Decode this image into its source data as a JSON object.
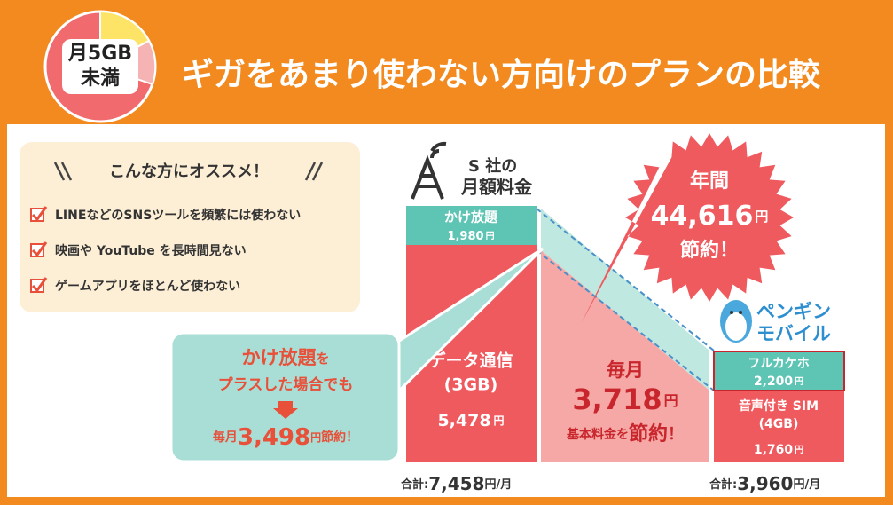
{
  "badge": {
    "line1": "月5GB",
    "line2": "未満"
  },
  "title": "ギガをあまり使わない方向けのプランの比較",
  "recommend": {
    "heading": "こんな方にオススメ！",
    "items": [
      "LINEなどのSNSツールを頻繁には使わない",
      "映画や YouTube を長時間見ない",
      "ゲームアプリをほとんど使わない"
    ]
  },
  "s_company": {
    "label1": "S 社の",
    "label2": "月額料金",
    "call": {
      "name": "かけ放題",
      "price": "1,980",
      "unit": "円"
    },
    "data": {
      "name": "データ通信",
      "size": "(3GB)",
      "price": "5,478",
      "unit": "円"
    },
    "total": {
      "prefix": "合計:",
      "price": "7,458",
      "unit": "円/月"
    }
  },
  "penguin": {
    "label1": "ペンギン",
    "label2": "モバイル",
    "call": {
      "name": "フルカケホ",
      "price": "2,200",
      "unit": "円"
    },
    "data": {
      "name": "音声付き SIM",
      "size": "(4GB)",
      "price": "1,760",
      "unit": "円"
    },
    "total": {
      "prefix": "合計:",
      "price": "3,960",
      "unit": "円/月"
    }
  },
  "monthly": {
    "label": "毎月",
    "price": "3,718",
    "unit": "円",
    "line2a": "基本料金を",
    "line2b": "節約",
    "line2c": "！"
  },
  "annual": {
    "label": "年間",
    "price": "44,616",
    "unit": "円",
    "saving": "節約！"
  },
  "callout": {
    "line1a": "かけ放題",
    "line1b": "を",
    "line2": "プラスした場合でも",
    "prefix": "毎月",
    "price": "3,498",
    "unit": "円",
    "suffix": "節約！"
  }
}
